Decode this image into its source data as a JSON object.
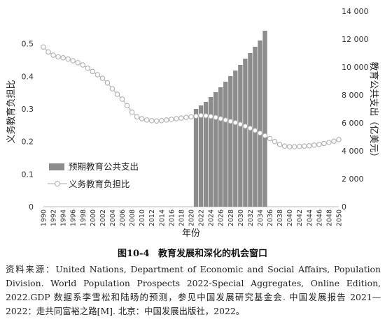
{
  "chart_data": {
    "type": "bar+line",
    "x_label": "年份",
    "y_left_label": "义务教育负担比",
    "y_right_label": "教育公共支出（亿美元）",
    "y_left_ticks": [
      "0",
      "0.1",
      "0.2",
      "0.3",
      "0.4",
      "0.5"
    ],
    "y_right_ticks": [
      "0",
      "2 000",
      "4 000",
      "6 000",
      "8 000",
      "10 000",
      "12 000",
      "14 000"
    ],
    "ylim_left": [
      0,
      0.6
    ],
    "ylim_right": [
      0,
      14000
    ],
    "x_tick_labels": [
      "1990",
      "1992",
      "1994",
      "1996",
      "1998",
      "2000",
      "2002",
      "2004",
      "2006",
      "2008",
      "2010",
      "2012",
      "2014",
      "2016",
      "2018",
      "2020",
      "2022",
      "2024",
      "2026",
      "2028",
      "2030",
      "2032",
      "2034",
      "2036",
      "2038",
      "2040",
      "2042",
      "2044",
      "2046",
      "2048",
      "2050"
    ],
    "legend": {
      "position": "left-middle",
      "bar_label": "预期教育公共支出",
      "line_label": "义务教育负担比"
    },
    "bar_series": {
      "name": "预期教育公共支出",
      "color": "#8c8c8c",
      "x": [
        2021,
        2022,
        2023,
        2024,
        2025,
        2026,
        2027,
        2028,
        2029,
        2030,
        2031,
        2032,
        2033,
        2034,
        2035
      ],
      "values": [
        7000,
        7250,
        7500,
        7850,
        8200,
        8550,
        8950,
        9350,
        9750,
        10150,
        10600,
        11000,
        11450,
        11900,
        12600
      ]
    },
    "line_series": {
      "name": "义务教育负担比",
      "color": "#aaaaaa",
      "x": [
        1990,
        1991,
        1992,
        1993,
        1994,
        1995,
        1996,
        1997,
        1998,
        1999,
        2000,
        2001,
        2002,
        2003,
        2004,
        2005,
        2006,
        2007,
        2008,
        2009,
        2010,
        2011,
        2012,
        2013,
        2014,
        2015,
        2016,
        2017,
        2018,
        2019,
        2020,
        2021,
        2022,
        2023,
        2024,
        2025,
        2026,
        2027,
        2028,
        2029,
        2030,
        2031,
        2032,
        2033,
        2034,
        2035,
        2036,
        2037,
        2038,
        2039,
        2040,
        2041,
        2042,
        2043,
        2044,
        2045,
        2046,
        2047,
        2048,
        2049,
        2050
      ],
      "values": [
        0.49,
        0.475,
        0.465,
        0.46,
        0.457,
        0.453,
        0.448,
        0.442,
        0.435,
        0.425,
        0.415,
        0.405,
        0.394,
        0.38,
        0.362,
        0.345,
        0.33,
        0.31,
        0.29,
        0.276,
        0.27,
        0.266,
        0.264,
        0.263,
        0.264,
        0.266,
        0.268,
        0.27,
        0.272,
        0.274,
        0.276,
        0.278,
        0.28,
        0.279,
        0.277,
        0.274,
        0.27,
        0.266,
        0.262,
        0.258,
        0.253,
        0.247,
        0.241,
        0.234,
        0.226,
        0.218,
        0.209,
        0.2,
        0.191,
        0.186,
        0.184,
        0.184,
        0.185,
        0.186,
        0.187,
        0.189,
        0.191,
        0.194,
        0.197,
        0.201,
        0.206
      ]
    }
  },
  "caption": {
    "figure_number": "图10-4",
    "title": "教育发展和深化的机会窗口"
  },
  "source_note": "资料来源：United Nations, Department of Economic and Social Affairs, Population Division. World Population Prospects 2022-Special Aggregates, Online Edition, 2022.GDP 数据系李雪松和陆旸的预测，参见中国发展研究基金会. 中国发展报告 2021—2022：走共同富裕之路[M]. 北京：中国发展出版社，2022。"
}
